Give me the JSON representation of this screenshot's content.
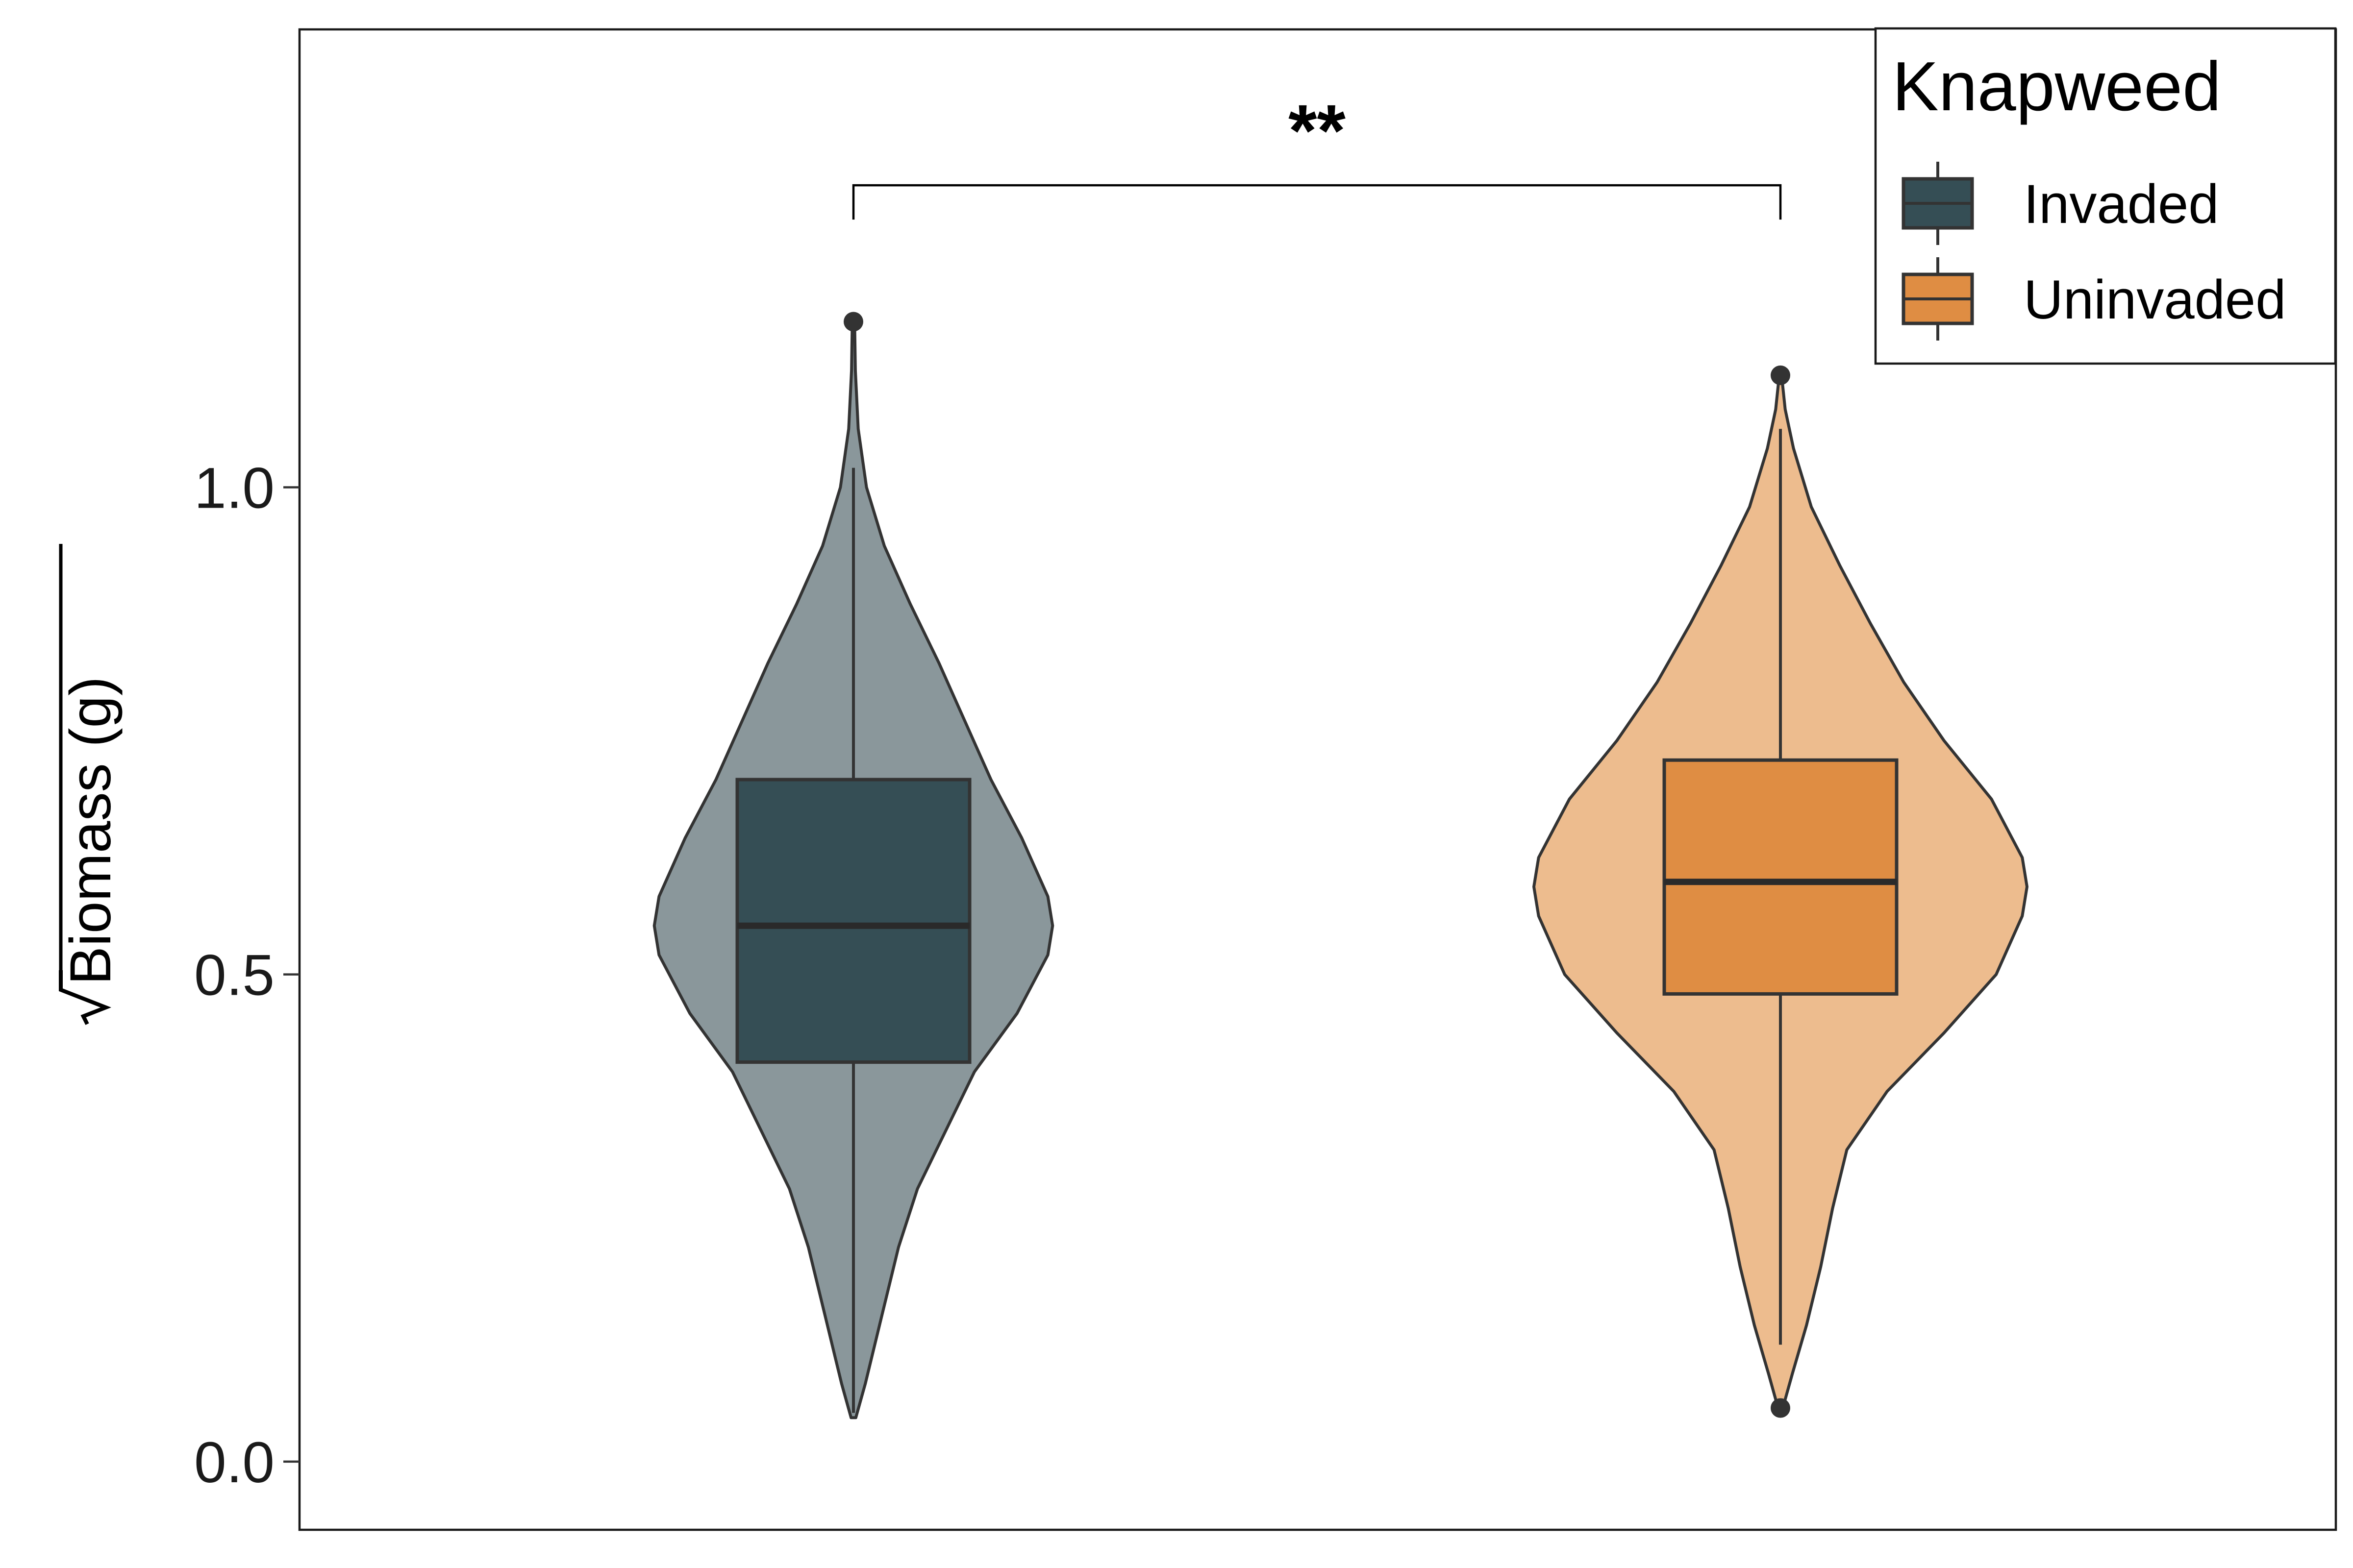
{
  "chart_data": {
    "type": "violin-box",
    "ylabel": "Biomass (g)",
    "ylabel_sqrt": true,
    "ylim": [
      -0.07,
      1.47
    ],
    "yticks": [
      {
        "value": 0.0,
        "label": "0.0"
      },
      {
        "value": 0.5,
        "label": "0.5"
      },
      {
        "value": 1.0,
        "label": "1.0"
      }
    ],
    "legend": {
      "title": "Knapweed",
      "position": "top-right",
      "items": [
        {
          "label": "Invaded",
          "color": "#354E55"
        },
        {
          "label": "Uninvaded",
          "color": "#DF8D43"
        }
      ]
    },
    "significance": {
      "label": "**",
      "bracket_y": 1.31
    },
    "series": [
      {
        "name": "Invaded",
        "box_color": "#354E55",
        "violin_color": "#8A979B",
        "q1": 0.41,
        "median": 0.55,
        "q3": 0.7,
        "whisker_low": 0.05,
        "whisker_high": 1.02,
        "outliers": [
          1.17
        ],
        "violin_min": 0.045,
        "violin_max": 1.17,
        "density": [
          [
            0.045,
            0.01
          ],
          [
            0.08,
            0.05
          ],
          [
            0.15,
            0.12
          ],
          [
            0.22,
            0.19
          ],
          [
            0.28,
            0.27
          ],
          [
            0.34,
            0.39
          ],
          [
            0.4,
            0.51
          ],
          [
            0.46,
            0.69
          ],
          [
            0.52,
            0.82
          ],
          [
            0.55,
            0.84
          ],
          [
            0.58,
            0.82
          ],
          [
            0.64,
            0.71
          ],
          [
            0.7,
            0.58
          ],
          [
            0.76,
            0.47
          ],
          [
            0.82,
            0.36
          ],
          [
            0.88,
            0.24
          ],
          [
            0.94,
            0.13
          ],
          [
            1.0,
            0.055
          ],
          [
            1.06,
            0.02
          ],
          [
            1.12,
            0.008
          ],
          [
            1.17,
            0.005
          ]
        ]
      },
      {
        "name": "Uninvaded",
        "box_color": "#DF8D43",
        "violin_color": "#EDBC8E",
        "q1": 0.48,
        "median": 0.595,
        "q3": 0.72,
        "whisker_low": 0.12,
        "whisker_high": 1.06,
        "outliers": [
          0.055,
          1.115
        ],
        "violin_min": 0.055,
        "violin_max": 1.115,
        "density": [
          [
            0.055,
            0.01
          ],
          [
            0.09,
            0.05
          ],
          [
            0.14,
            0.11
          ],
          [
            0.2,
            0.17
          ],
          [
            0.26,
            0.22
          ],
          [
            0.32,
            0.28
          ],
          [
            0.38,
            0.45
          ],
          [
            0.44,
            0.69
          ],
          [
            0.5,
            0.91
          ],
          [
            0.56,
            1.02
          ],
          [
            0.59,
            1.04
          ],
          [
            0.62,
            1.02
          ],
          [
            0.68,
            0.89
          ],
          [
            0.74,
            0.69
          ],
          [
            0.8,
            0.52
          ],
          [
            0.86,
            0.38
          ],
          [
            0.92,
            0.25
          ],
          [
            0.98,
            0.13
          ],
          [
            1.04,
            0.055
          ],
          [
            1.08,
            0.02
          ],
          [
            1.115,
            0.005
          ]
        ]
      }
    ]
  }
}
